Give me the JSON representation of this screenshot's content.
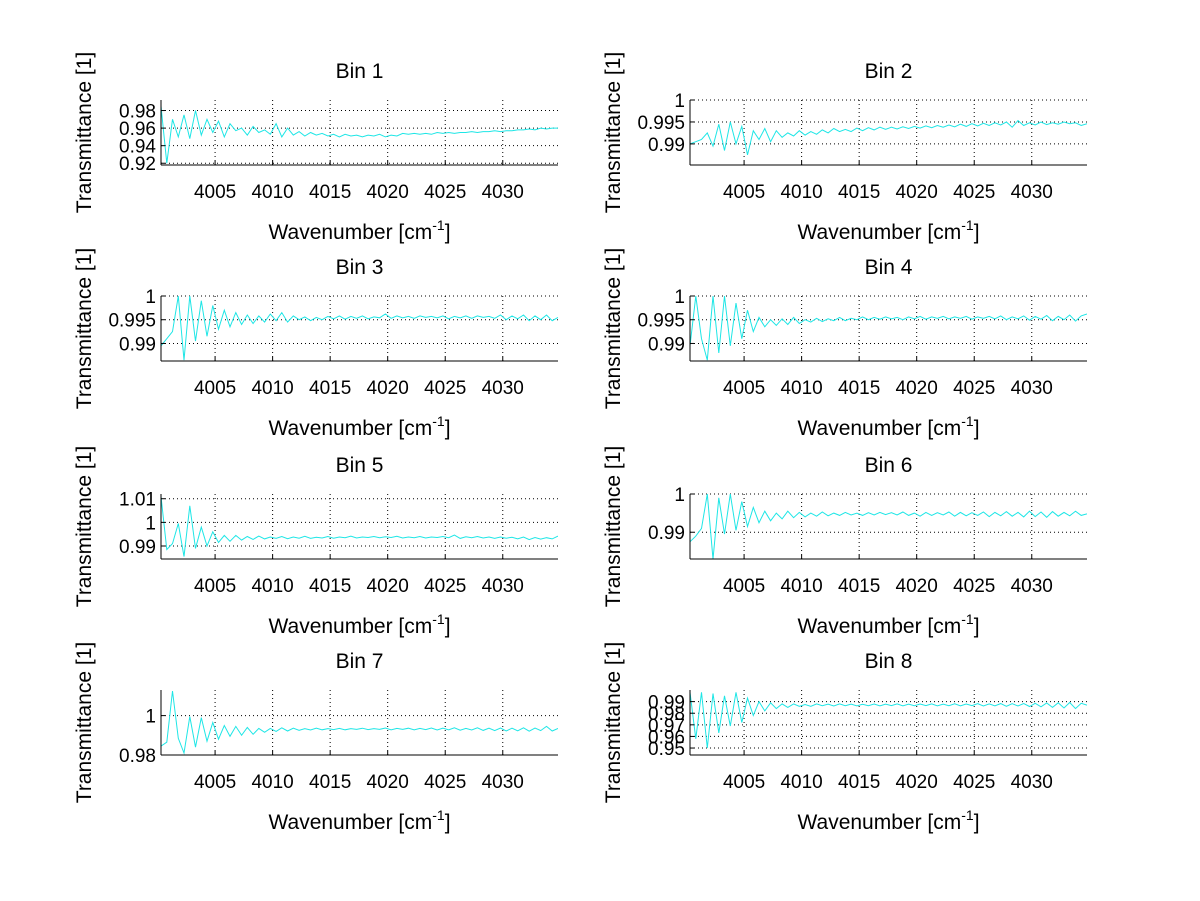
{
  "figure": {
    "line_color": "#1ee6e6",
    "axis_color": "#000000",
    "background": "#ffffff"
  },
  "chart_data": [
    {
      "type": "line",
      "title": "Bin 1",
      "xlabel": "Wavenumber [cm",
      "xlabel_sup": "-1",
      "xlabel_end": "]",
      "ylabel": "Transmittance [1]",
      "xlim": [
        4000.3,
        4034.8
      ],
      "ylim": [
        0.918,
        0.992
      ],
      "xticks": [
        4005,
        4010,
        4015,
        4020,
        4025,
        4030
      ],
      "yticks": [
        0.92,
        0.94,
        0.96,
        0.98
      ],
      "ytick_labels": [
        "0.92",
        "0.94",
        "0.96",
        "0.98"
      ],
      "grid": true,
      "series": [
        {
          "name": "Bin 1",
          "x_start": 4000.3,
          "x_step": 0.5,
          "y": [
            0.985,
            0.92,
            0.97,
            0.95,
            0.975,
            0.948,
            0.98,
            0.952,
            0.97,
            0.955,
            0.968,
            0.95,
            0.965,
            0.957,
            0.96,
            0.952,
            0.962,
            0.955,
            0.958,
            0.953,
            0.965,
            0.95,
            0.96,
            0.952,
            0.956,
            0.951,
            0.955,
            0.952,
            0.954,
            0.951,
            0.953,
            0.95,
            0.953,
            0.951,
            0.952,
            0.95,
            0.952,
            0.951,
            0.953,
            0.95,
            0.952,
            0.951,
            0.954,
            0.953,
            0.954,
            0.953,
            0.954,
            0.953,
            0.955,
            0.954,
            0.955,
            0.954,
            0.955,
            0.955,
            0.956,
            0.955,
            0.956,
            0.956,
            0.957,
            0.956,
            0.957,
            0.957,
            0.958,
            0.958,
            0.959,
            0.958,
            0.96,
            0.959,
            0.96,
            0.96
          ]
        }
      ]
    },
    {
      "type": "line",
      "title": "Bin 2",
      "xlabel": "Wavenumber [cm",
      "xlabel_sup": "-1",
      "xlabel_end": "]",
      "ylabel": "Transmittance [1]",
      "xlim": [
        4000.3,
        4034.8
      ],
      "ylim": [
        0.9852,
        1.0
      ],
      "xticks": [
        4005,
        4010,
        4015,
        4020,
        4025,
        4030
      ],
      "yticks": [
        0.99,
        0.995,
        1
      ],
      "ytick_labels": [
        "0.99",
        "0.995",
        "1"
      ],
      "grid": true,
      "series": [
        {
          "name": "Bin 2",
          "x_start": 4000.3,
          "x_step": 0.5,
          "y": [
            0.99,
            0.9905,
            0.991,
            0.9925,
            0.9895,
            0.9945,
            0.9885,
            0.995,
            0.99,
            0.994,
            0.9875,
            0.993,
            0.991,
            0.9935,
            0.9905,
            0.993,
            0.9915,
            0.9925,
            0.9918,
            0.993,
            0.992,
            0.9928,
            0.9922,
            0.9932,
            0.9925,
            0.9935,
            0.9928,
            0.9933,
            0.9928,
            0.9936,
            0.993,
            0.9937,
            0.9932,
            0.9938,
            0.9933,
            0.9938,
            0.9934,
            0.9939,
            0.9935,
            0.994,
            0.9936,
            0.9941,
            0.9937,
            0.9942,
            0.9938,
            0.9943,
            0.9939,
            0.9945,
            0.994,
            0.9946,
            0.9941,
            0.9947,
            0.9942,
            0.9948,
            0.9943,
            0.995,
            0.9938,
            0.9953,
            0.9942,
            0.9948,
            0.9943,
            0.995,
            0.9944,
            0.9948,
            0.9945,
            0.995,
            0.9946,
            0.9948,
            0.9942,
            0.9946
          ]
        }
      ]
    },
    {
      "type": "line",
      "title": "Bin 3",
      "xlabel": "Wavenumber [cm",
      "xlabel_sup": "-1",
      "xlabel_end": "]",
      "ylabel": "Transmittance [1]",
      "xlim": [
        4000.3,
        4034.8
      ],
      "ylim": [
        0.9863,
        1.0
      ],
      "xticks": [
        4005,
        4010,
        4015,
        4020,
        4025,
        4030
      ],
      "yticks": [
        0.99,
        0.995,
        1
      ],
      "ytick_labels": [
        "0.99",
        "0.995",
        "1"
      ],
      "grid": true,
      "series": [
        {
          "name": "Bin 3",
          "x_start": 4000.3,
          "x_step": 0.5,
          "y": [
            0.9895,
            0.991,
            0.9925,
            1.0,
            0.9865,
            1.0,
            0.9905,
            0.999,
            0.9915,
            0.998,
            0.993,
            0.997,
            0.9935,
            0.9965,
            0.994,
            0.996,
            0.9942,
            0.9958,
            0.9945,
            0.9962,
            0.9948,
            0.9965,
            0.9945,
            0.9958,
            0.995,
            0.9956,
            0.9948,
            0.9955,
            0.995,
            0.9957,
            0.9952,
            0.9958,
            0.9951,
            0.9957,
            0.9953,
            0.9958,
            0.9952,
            0.9956,
            0.9954,
            0.9962,
            0.9953,
            0.9958,
            0.9954,
            0.9957,
            0.9953,
            0.9958,
            0.9955,
            0.9957,
            0.9954,
            0.9958,
            0.9952,
            0.9957,
            0.9954,
            0.9958,
            0.9953,
            0.9958,
            0.9955,
            0.9957,
            0.9953,
            0.996,
            0.995,
            0.9958,
            0.9952,
            0.996,
            0.9948,
            0.9958,
            0.995,
            0.996,
            0.9948,
            0.9955
          ]
        }
      ]
    },
    {
      "type": "line",
      "title": "Bin 4",
      "xlabel": "Wavenumber [cm",
      "xlabel_sup": "-1",
      "xlabel_end": "]",
      "ylabel": "Transmittance [1]",
      "xlim": [
        4000.3,
        4034.8
      ],
      "ylim": [
        0.9863,
        1.0
      ],
      "xticks": [
        4005,
        4010,
        4015,
        4020,
        4025,
        4030
      ],
      "yticks": [
        0.99,
        0.995,
        1
      ],
      "ytick_labels": [
        "0.99",
        "0.995",
        "1"
      ],
      "grid": true,
      "series": [
        {
          "name": "Bin 4",
          "x_start": 4000.3,
          "x_step": 0.5,
          "y": [
            0.9895,
            1.0,
            0.991,
            0.9865,
            1.0,
            0.988,
            1.0,
            0.9895,
            0.9985,
            0.991,
            0.997,
            0.9925,
            0.9955,
            0.9935,
            0.995,
            0.9938,
            0.9952,
            0.994,
            0.9955,
            0.9942,
            0.995,
            0.9945,
            0.9953,
            0.9946,
            0.9952,
            0.9948,
            0.9955,
            0.9948,
            0.9953,
            0.995,
            0.9956,
            0.995,
            0.9955,
            0.9951,
            0.9956,
            0.9952,
            0.9955,
            0.995,
            0.9956,
            0.9952,
            0.9957,
            0.9951,
            0.9956,
            0.9953,
            0.9957,
            0.9952,
            0.9956,
            0.9953,
            0.9957,
            0.9951,
            0.9956,
            0.9953,
            0.9957,
            0.9952,
            0.9958,
            0.995,
            0.9956,
            0.9952,
            0.9958,
            0.9949,
            0.9957,
            0.9951,
            0.9959,
            0.9948,
            0.9957,
            0.995,
            0.996,
            0.9947,
            0.9958,
            0.9962
          ]
        }
      ]
    },
    {
      "type": "line",
      "title": "Bin 5",
      "xlabel": "Wavenumber [cm",
      "xlabel_sup": "-1",
      "xlabel_end": "]",
      "ylabel": "Transmittance [1]",
      "xlim": [
        4000.3,
        4034.8
      ],
      "ylim": [
        0.9845,
        1.012
      ],
      "xticks": [
        4005,
        4010,
        4015,
        4020,
        4025,
        4030
      ],
      "yticks": [
        0.99,
        1,
        1.01
      ],
      "ytick_labels": [
        "0.99",
        "1",
        "1.01"
      ],
      "grid": true,
      "series": [
        {
          "name": "Bin 5",
          "x_start": 4000.3,
          "x_step": 0.5,
          "y": [
            1.011,
            0.9885,
            0.991,
            0.9995,
            0.9855,
            1.007,
            0.989,
            0.998,
            0.99,
            0.996,
            0.9915,
            0.9945,
            0.992,
            0.9945,
            0.9925,
            0.994,
            0.9928,
            0.9942,
            0.993,
            0.9938,
            0.9932,
            0.994,
            0.9931,
            0.9938,
            0.9933,
            0.9941,
            0.9932,
            0.9937,
            0.9934,
            0.994,
            0.9933,
            0.9938,
            0.9935,
            0.9942,
            0.9934,
            0.9938,
            0.9936,
            0.994,
            0.9935,
            0.9939,
            0.9936,
            0.9941,
            0.9934,
            0.9938,
            0.9935,
            0.994,
            0.9934,
            0.9938,
            0.9936,
            0.994,
            0.9935,
            0.9946,
            0.9932,
            0.9939,
            0.9935,
            0.994,
            0.9934,
            0.9938,
            0.9932,
            0.9938,
            0.9933,
            0.9937,
            0.993,
            0.9938,
            0.9927,
            0.9936,
            0.9929,
            0.9935,
            0.993,
            0.9942
          ]
        }
      ]
    },
    {
      "type": "line",
      "title": "Bin 6",
      "xlabel": "Wavenumber [cm",
      "xlabel_sup": "-1",
      "xlabel_end": "]",
      "ylabel": "Transmittance [1]",
      "xlim": [
        4000.3,
        4034.8
      ],
      "ylim": [
        0.983,
        1.0
      ],
      "xticks": [
        4005,
        4010,
        4015,
        4020,
        4025,
        4030
      ],
      "yticks": [
        0.99,
        1
      ],
      "ytick_labels": [
        "0.99",
        "1"
      ],
      "grid": true,
      "series": [
        {
          "name": "Bin 6",
          "x_start": 4000.3,
          "x_step": 0.5,
          "y": [
            0.9875,
            0.989,
            0.991,
            1.0,
            0.983,
            0.999,
            0.9895,
            1.0,
            0.9905,
            0.998,
            0.9915,
            0.9965,
            0.9925,
            0.9955,
            0.993,
            0.995,
            0.9935,
            0.9955,
            0.9938,
            0.9952,
            0.994,
            0.995,
            0.9942,
            0.9953,
            0.9943,
            0.995,
            0.9944,
            0.9952,
            0.9945,
            0.995,
            0.9944,
            0.9951,
            0.9945,
            0.9952,
            0.9946,
            0.9951,
            0.9945,
            0.9953,
            0.9944,
            0.995,
            0.9942,
            0.9952,
            0.9944,
            0.9951,
            0.9945,
            0.9953,
            0.9942,
            0.9952,
            0.9943,
            0.9951,
            0.9944,
            0.9953,
            0.9941,
            0.9952,
            0.9943,
            0.9954,
            0.9942,
            0.9952,
            0.994,
            0.9955,
            0.9941,
            0.9953,
            0.9939,
            0.9954,
            0.9942,
            0.9952,
            0.9943,
            0.9955,
            0.9944,
            0.9948
          ]
        }
      ]
    },
    {
      "type": "line",
      "title": "Bin 7",
      "xlabel": "Wavenumber [cm",
      "xlabel_sup": "-1",
      "xlabel_end": "]",
      "ylabel": "Transmittance [1]",
      "xlim": [
        4000.3,
        4034.8
      ],
      "ylim": [
        0.98,
        1.013
      ],
      "xticks": [
        4005,
        4010,
        4015,
        4020,
        4025,
        4030
      ],
      "yticks": [
        0.98,
        1
      ],
      "ytick_labels": [
        "0.98",
        "1"
      ],
      "grid": true,
      "series": [
        {
          "name": "Bin 7",
          "x_start": 4000.3,
          "x_step": 0.5,
          "y": [
            0.9845,
            0.9865,
            1.0125,
            0.9885,
            0.981,
            0.9995,
            0.984,
            0.999,
            0.987,
            0.9965,
            0.988,
            0.995,
            0.9895,
            0.9945,
            0.99,
            0.994,
            0.9905,
            0.9935,
            0.9915,
            0.9935,
            0.992,
            0.9938,
            0.9922,
            0.9936,
            0.9925,
            0.9934,
            0.9927,
            0.9936,
            0.9928,
            0.9934,
            0.9929,
            0.9935,
            0.9928,
            0.9934,
            0.993,
            0.9936,
            0.9929,
            0.9934,
            0.993,
            0.9937,
            0.9928,
            0.9935,
            0.993,
            0.9936,
            0.9928,
            0.9935,
            0.9929,
            0.9937,
            0.9927,
            0.9936,
            0.9928,
            0.9938,
            0.9926,
            0.9935,
            0.9927,
            0.9938,
            0.9925,
            0.9936,
            0.9924,
            0.9937,
            0.9922,
            0.9936,
            0.9923,
            0.9938,
            0.9921,
            0.9937,
            0.9924,
            0.9945,
            0.9922,
            0.9935
          ]
        }
      ]
    },
    {
      "type": "line",
      "title": "Bin 8",
      "xlabel": "Wavenumber [cm",
      "xlabel_sup": "-1",
      "xlabel_end": "]",
      "ylabel": "Transmittance [1]",
      "xlim": [
        4000.3,
        4034.8
      ],
      "ylim": [
        0.944,
        1.0
      ],
      "xticks": [
        4005,
        4010,
        4015,
        4020,
        4025,
        4030
      ],
      "yticks": [
        0.95,
        0.96,
        0.97,
        0.98,
        0.99
      ],
      "ytick_labels": [
        "0.95",
        "0.96",
        "0.97",
        "0.98",
        "0.99"
      ],
      "grid": true,
      "series": [
        {
          "name": "Bin 8",
          "x_start": 4000.3,
          "x_step": 0.5,
          "y": [
            0.998,
            0.958,
            0.998,
            0.95,
            0.997,
            0.963,
            0.995,
            0.969,
            0.998,
            0.972,
            0.993,
            0.978,
            0.99,
            0.982,
            0.989,
            0.984,
            0.988,
            0.985,
            0.988,
            0.986,
            0.9875,
            0.986,
            0.988,
            0.9865,
            0.9878,
            0.9862,
            0.988,
            0.9865,
            0.9878,
            0.9863,
            0.9877,
            0.9865,
            0.9879,
            0.9864,
            0.9878,
            0.9866,
            0.988,
            0.9864,
            0.9878,
            0.9865,
            0.9879,
            0.9866,
            0.988,
            0.9864,
            0.9878,
            0.9865,
            0.9881,
            0.9863,
            0.9879,
            0.9866,
            0.9882,
            0.9862,
            0.988,
            0.9864,
            0.9883,
            0.986,
            0.9882,
            0.9862,
            0.9884,
            0.9858,
            0.9885,
            0.9855,
            0.9888,
            0.985,
            0.989,
            0.9845,
            0.9892,
            0.984,
            0.9885,
            0.987
          ]
        }
      ]
    }
  ]
}
